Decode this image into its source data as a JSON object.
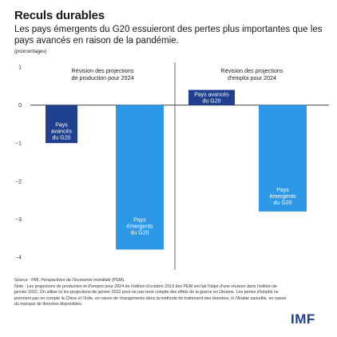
{
  "title": "Reculs durables",
  "subtitle": "Les pays émergents du G20 essuieront des pertes plus importantes que les pays avancés en raison de la pandémie.",
  "unit": "(pourcentages)",
  "note": {
    "source_prefix": "Source : FMI, ",
    "source_title": "Perspectives de l'économie mondiale",
    "source_suffix": " (PEM).",
    "text": "Note : Les projections de production et d'emploi pour 2024 de l'édition d'octobre 2019 des PEM ont fait l'objet d'une révision dans l'édition de janvier 2022. On utilise ici les projections de janvier 2022 pour ne pas tenir compte des effets de la guerre en Ukraine. Les pertes d'emploi ne prennent pas en compte la Chine et l'Inde, en raison de changements dans la méthode de traitement des données, ni l'Arabie saoudite, en raison du manque de données disponibles."
  },
  "logo": "IMF",
  "colors": {
    "advanced": "#1f3f8f",
    "emerging": "#2d97e8",
    "axis": "#444444",
    "text_on_bar": "#ffffff"
  },
  "chart_data": {
    "type": "bar",
    "ylim": [
      -4,
      1
    ],
    "yticks": [
      1,
      0,
      -1,
      -2,
      -3,
      -4
    ],
    "grid": false,
    "panels": [
      {
        "title": "Révision des projections de production pour 2024",
        "bars": [
          {
            "label": "Pays avancés du G20",
            "value": -1.0,
            "color": "#1f3f8f"
          },
          {
            "label": "Pays émergents du G20",
            "value": -3.8,
            "color": "#2d97e8"
          }
        ]
      },
      {
        "title": "Révision des projections d'emploi pour 2024",
        "bars": [
          {
            "label": "Pays avancés du G20",
            "value": 0.4,
            "color": "#1f3f8f"
          },
          {
            "label": "Pays émergents du G20",
            "value": -2.8,
            "color": "#2d97e8"
          }
        ]
      }
    ]
  }
}
